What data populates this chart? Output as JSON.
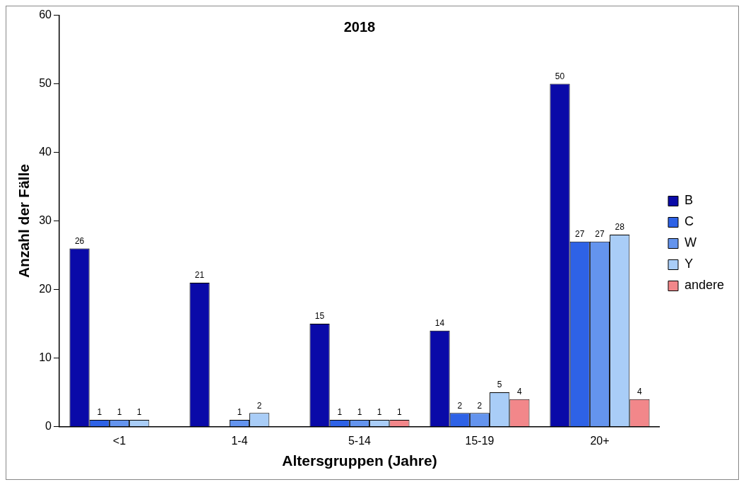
{
  "chart_data": {
    "type": "bar",
    "title": "2018",
    "xlabel": "Altersgruppen (Jahre)",
    "ylabel": "Anzahl der Fälle",
    "categories": [
      "<1",
      "1-4",
      "5-14",
      "15-19",
      "20+"
    ],
    "series": [
      {
        "name": "B",
        "color": "#0a0aa8",
        "values": [
          26,
          21,
          15,
          14,
          50
        ]
      },
      {
        "name": "C",
        "color": "#2e62e6",
        "values": [
          1,
          null,
          1,
          2,
          27
        ]
      },
      {
        "name": "W",
        "color": "#6494ee",
        "values": [
          1,
          1,
          1,
          2,
          27
        ]
      },
      {
        "name": "Y",
        "color": "#a9cdf7",
        "values": [
          1,
          2,
          1,
          5,
          28
        ]
      },
      {
        "name": "andere",
        "color": "#f2878a",
        "values": [
          null,
          null,
          1,
          4,
          4
        ]
      }
    ],
    "ylim": [
      0,
      60
    ],
    "yticks": [
      0,
      10,
      20,
      30,
      40,
      50,
      60
    ],
    "grid": false,
    "legend": "right",
    "data_labels": true
  }
}
